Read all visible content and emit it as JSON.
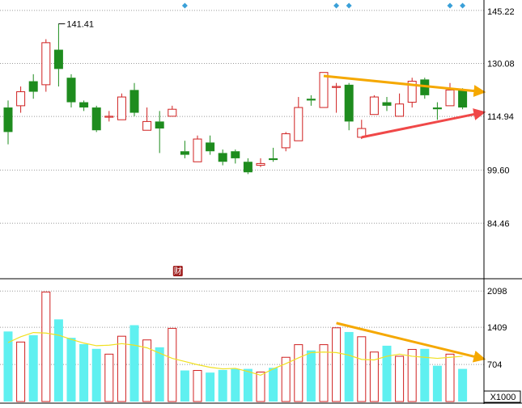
{
  "colors": {
    "up": "#d02020",
    "down": "#1e8c1e",
    "grid": "#9a9a9a",
    "axis_text": "#000000",
    "volume_bar": "#5ff0f0",
    "volume_ma": "#f0e020",
    "arrow_orange": "#f5a800",
    "arrow_red": "#f04848",
    "marker": "#3aa0d8",
    "event_badge": "#a02020"
  },
  "chart_data": [
    {
      "type": "candlestick",
      "title": "",
      "y_ticks": [
        "145.22",
        "130.08",
        "114.94",
        "99.60",
        "84.46"
      ],
      "ylim": [
        69.3,
        147.5
      ],
      "grid": true,
      "high_label": "141.41",
      "event_badge_label": "财",
      "marker_icon": "diamond-marker",
      "marker_candles": [
        14,
        26,
        27,
        35,
        36
      ],
      "candles": [
        {
          "open": 117.5,
          "high": 119.5,
          "low": 107.0,
          "close": 110.5
        },
        {
          "open": 118.0,
          "high": 123.5,
          "low": 116.0,
          "close": 122.0
        },
        {
          "open": 125.0,
          "high": 127.0,
          "low": 120.0,
          "close": 122.0
        },
        {
          "open": 124.0,
          "high": 137.0,
          "low": 122.0,
          "close": 136.0
        },
        {
          "open": 134.0,
          "high": 141.41,
          "low": 123.5,
          "close": 128.5
        },
        {
          "open": 126.0,
          "high": 127.0,
          "low": 117.5,
          "close": 119.0
        },
        {
          "open": 119.0,
          "high": 119.5,
          "low": 116.5,
          "close": 117.5
        },
        {
          "open": 117.5,
          "high": 118.0,
          "low": 110.5,
          "close": 111.0
        },
        {
          "open": 115.0,
          "high": 116.5,
          "low": 113.5,
          "close": 115.0
        },
        {
          "open": 114.0,
          "high": 121.5,
          "low": 114.0,
          "close": 120.5
        },
        {
          "open": 122.5,
          "high": 124.5,
          "low": 115.0,
          "close": 116.0
        },
        {
          "open": 111.0,
          "high": 117.5,
          "low": 111.0,
          "close": 113.5
        },
        {
          "open": 113.5,
          "high": 116.5,
          "low": 104.5,
          "close": 111.5
        },
        {
          "open": 115.0,
          "high": 118.0,
          "low": 115.0,
          "close": 117.0
        },
        {
          "open": 105.0,
          "high": 108.0,
          "low": 103.0,
          "close": 104.0
        },
        {
          "open": 102.0,
          "high": 109.5,
          "low": 102.0,
          "close": 108.5
        },
        {
          "open": 107.5,
          "high": 109.5,
          "low": 104.0,
          "close": 105.0
        },
        {
          "open": 104.5,
          "high": 105.5,
          "low": 101.0,
          "close": 102.0
        },
        {
          "open": 105.0,
          "high": 105.5,
          "low": 101.5,
          "close": 103.0
        },
        {
          "open": 102.0,
          "high": 103.0,
          "low": 98.5,
          "close": 99.0
        },
        {
          "open": 101.0,
          "high": 103.0,
          "low": 100.5,
          "close": 101.5
        },
        {
          "open": 103.0,
          "high": 106.0,
          "low": 102.0,
          "close": 102.5
        },
        {
          "open": 106.0,
          "high": 110.5,
          "low": 105.0,
          "close": 110.0
        },
        {
          "open": 108.0,
          "high": 120.5,
          "low": 108.0,
          "close": 117.5
        },
        {
          "open": 120.0,
          "high": 121.0,
          "low": 118.0,
          "close": 119.5
        },
        {
          "open": 117.5,
          "high": 127.5,
          "low": 117.5,
          "close": 127.5
        },
        {
          "open": 123.5,
          "high": 124.5,
          "low": 116.0,
          "close": 123.5
        },
        {
          "open": 124.0,
          "high": 124.5,
          "low": 111.0,
          "close": 113.5
        },
        {
          "open": 109.0,
          "high": 114.0,
          "low": 108.5,
          "close": 111.5
        },
        {
          "open": 115.5,
          "high": 121.0,
          "low": 115.5,
          "close": 120.5
        },
        {
          "open": 119.0,
          "high": 120.5,
          "low": 116.5,
          "close": 118.0
        },
        {
          "open": 115.0,
          "high": 121.5,
          "low": 115.0,
          "close": 118.5
        },
        {
          "open": 119.0,
          "high": 126.0,
          "low": 117.5,
          "close": 125.0
        },
        {
          "open": 125.5,
          "high": 126.0,
          "low": 120.0,
          "close": 121.0
        },
        {
          "open": 117.5,
          "high": 119.0,
          "low": 114.0,
          "close": 117.0
        },
        {
          "open": 118.0,
          "high": 124.5,
          "low": 118.0,
          "close": 122.5
        },
        {
          "open": 122.5,
          "high": 123.0,
          "low": 117.0,
          "close": 117.5
        }
      ],
      "trend_arrows": [
        {
          "color": "arrow_orange",
          "from": [
            25,
            126.5
          ],
          "to": [
            37.5,
            122.0
          ]
        },
        {
          "color": "arrow_red",
          "from": [
            28,
            109.0
          ],
          "to": [
            37.5,
            116.0
          ]
        }
      ]
    },
    {
      "type": "bar",
      "title": "",
      "unit_label": "X1000",
      "y_ticks": [
        "2098",
        "1409",
        "704"
      ],
      "ylim": [
        0,
        2255
      ],
      "grid": true,
      "volumes": [
        1330,
        1130,
        1260,
        2080,
        1560,
        1210,
        1090,
        1000,
        900,
        1240,
        1450,
        1170,
        1030,
        1390,
        590,
        590,
        550,
        600,
        620,
        620,
        560,
        640,
        840,
        1080,
        970,
        1080,
        1400,
        1320,
        1230,
        940,
        1060,
        860,
        990,
        1000,
        680,
        900,
        620
      ],
      "volume_ma": [
        1120,
        1230,
        1310,
        1300,
        1260,
        1180,
        1110,
        1060,
        1070,
        1100,
        1070,
        1020,
        920,
        820,
        760,
        700,
        650,
        620,
        630,
        570,
        500,
        620,
        720,
        830,
        930,
        940,
        930,
        880,
        800,
        790,
        860,
        900,
        860,
        840,
        820,
        840,
        860
      ],
      "trend_arrow": {
        "color": "arrow_orange",
        "from": [
          26,
          1490
        ],
        "to": [
          37.5,
          820
        ]
      }
    }
  ]
}
